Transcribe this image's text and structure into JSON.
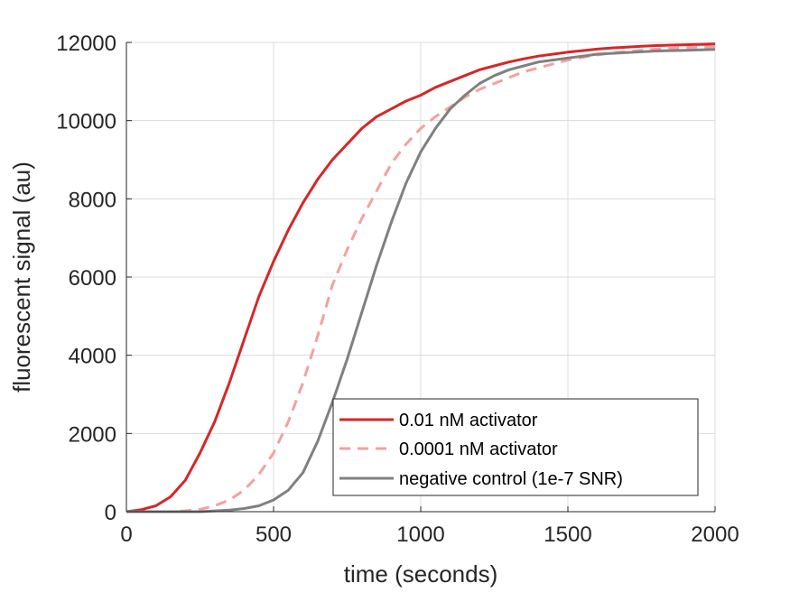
{
  "chart_data": {
    "type": "line",
    "title": "",
    "xlabel": "time (seconds)",
    "ylabel": "fluorescent signal (au)",
    "xlim": [
      0,
      2000
    ],
    "ylim": [
      0,
      12000
    ],
    "grid": true,
    "legend_placement": "bottom-right",
    "x_ticks": [
      0,
      500,
      1000,
      1500,
      2000
    ],
    "x_tick_labels": [
      "0",
      "500",
      "1000",
      "1500",
      "2000"
    ],
    "y_ticks": [
      0,
      2000,
      4000,
      6000,
      8000,
      10000,
      12000
    ],
    "y_tick_labels": [
      "0",
      "2000",
      "4000",
      "6000",
      "8000",
      "10000",
      "12000"
    ],
    "x": [
      0,
      50,
      100,
      150,
      200,
      250,
      300,
      350,
      400,
      450,
      500,
      550,
      600,
      650,
      700,
      750,
      800,
      850,
      900,
      950,
      1000,
      1050,
      1100,
      1150,
      1200,
      1250,
      1300,
      1350,
      1400,
      1450,
      1500,
      1550,
      1600,
      1650,
      1700,
      1750,
      1800,
      1850,
      1900,
      1950,
      2000
    ],
    "series": [
      {
        "name": "0.01 nM activator",
        "color": "#d62728",
        "style": "solid",
        "values": [
          0,
          50,
          150,
          380,
          800,
          1500,
          2300,
          3300,
          4400,
          5500,
          6400,
          7200,
          7900,
          8500,
          9000,
          9400,
          9800,
          10100,
          10300,
          10500,
          10650,
          10850,
          11000,
          11150,
          11300,
          11400,
          11500,
          11580,
          11650,
          11700,
          11750,
          11790,
          11830,
          11860,
          11880,
          11900,
          11920,
          11930,
          11940,
          11950,
          11960
        ]
      },
      {
        "name": "0.0001 nM activator",
        "color": "#f4a0a0",
        "style": "dashed",
        "values": [
          0,
          0,
          0,
          0,
          20,
          60,
          150,
          300,
          550,
          950,
          1500,
          2300,
          3300,
          4500,
          5800,
          6700,
          7500,
          8200,
          8900,
          9400,
          9800,
          10100,
          10350,
          10600,
          10800,
          10950,
          11100,
          11250,
          11350,
          11450,
          11550,
          11620,
          11680,
          11730,
          11770,
          11800,
          11830,
          11850,
          11870,
          11880,
          11890
        ]
      },
      {
        "name": "negative control (1e-7 SNR)",
        "color": "#808080",
        "style": "solid",
        "values": [
          0,
          0,
          0,
          0,
          0,
          0,
          20,
          40,
          80,
          150,
          300,
          550,
          1000,
          1800,
          2800,
          3900,
          5100,
          6300,
          7400,
          8400,
          9200,
          9800,
          10300,
          10650,
          10950,
          11150,
          11300,
          11400,
          11500,
          11550,
          11600,
          11650,
          11700,
          11720,
          11740,
          11760,
          11780,
          11790,
          11800,
          11810,
          11820
        ]
      }
    ]
  }
}
